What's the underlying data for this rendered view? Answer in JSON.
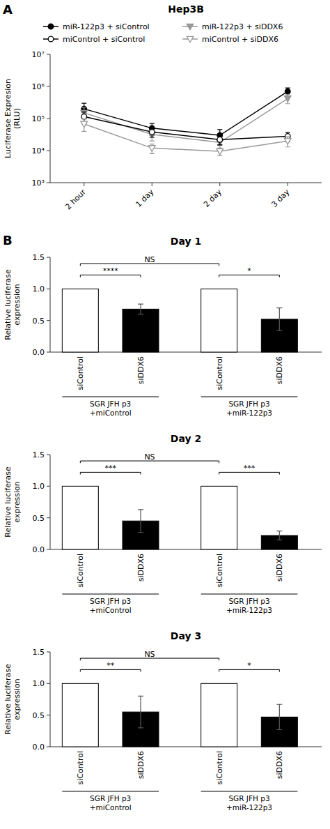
{
  "chart_data": [
    {
      "type": "line",
      "panel_label": "A",
      "title": "Hep3B",
      "y_label": "Luciferase Expresion\n(RLU)",
      "categories": [
        "2 hour",
        "1 day",
        "2 day",
        "3 day"
      ],
      "log": "y",
      "ylim": [
        1000,
        10000000
      ],
      "yticks": [
        {
          "value": 1000,
          "label": "10³"
        },
        {
          "value": 10000,
          "label": "10⁴"
        },
        {
          "value": 100000,
          "label": "10⁵"
        },
        {
          "value": 1000000,
          "label": "10⁶"
        },
        {
          "value": 10000000,
          "label": "10⁷"
        }
      ],
      "grid": false,
      "legend": "top",
      "series": [
        {
          "name": "miR-122p3 + siControl",
          "color": "black",
          "marker": "circle",
          "line_style": "solid",
          "values": [
            200000,
            50000,
            30000,
            700000
          ],
          "errors": [
            100000,
            20000,
            15000,
            200000
          ]
        },
        {
          "name": "miR-122p3 + siDDX6",
          "color": "#999999",
          "marker": "triangle-down",
          "line_style": "solid",
          "values": [
            150000,
            32000,
            18000,
            420000
          ],
          "errors": [
            70000,
            12000,
            8000,
            130000
          ]
        },
        {
          "name": "miControl + siControl",
          "color": "black",
          "marker": "circle-open",
          "line_style": "solid",
          "values": [
            115000,
            38000,
            22000,
            28000
          ],
          "errors": [
            45000,
            12000,
            7000,
            9000
          ]
        },
        {
          "name": "miControl + siDDX6",
          "color": "#999999",
          "marker": "triangle-down-open",
          "line_style": "solid",
          "values": [
            68000,
            12000,
            9500,
            20000
          ],
          "errors": [
            28000,
            4000,
            2500,
            7000
          ]
        }
      ]
    },
    {
      "type": "bar",
      "panel_label": "B",
      "title": "Day 1",
      "y_label": "Relative luciferase\nexpression",
      "categories": [
        "siControl",
        "siDDX6",
        "siControl",
        "siDDX6"
      ],
      "values": [
        1.0,
        0.68,
        1.0,
        0.52
      ],
      "errors": [
        0.0,
        0.08,
        0.0,
        0.18
      ],
      "colors": [
        "white",
        "black",
        "white",
        "black"
      ],
      "ylim": [
        0,
        1.5
      ],
      "yticks": [
        {
          "value": 0,
          "label": "0.0"
        },
        0.5,
        {
          "value": 1,
          "label": "1.0"
        },
        1.5
      ],
      "grid": false,
      "groups": [
        "SGR JFH p3\n+miControl",
        "SGR JFH p3\n+miR-122p3"
      ],
      "annotations": [
        {
          "x1": 0,
          "x2": 1,
          "y": 1.22,
          "text": "****"
        },
        {
          "x1": 2,
          "x2": 3,
          "y": 1.22,
          "text": "*"
        },
        {
          "x1": 0,
          "x2": 2,
          "y": 1.4,
          "text": "NS"
        }
      ]
    },
    {
      "type": "bar",
      "title": "Day 2",
      "y_label": "Relative luciferase\nexpression",
      "categories": [
        "siControl",
        "siDDX6",
        "siControl",
        "siDDX6"
      ],
      "values": [
        1.0,
        0.45,
        1.0,
        0.22
      ],
      "errors": [
        0.0,
        0.18,
        0.0,
        0.07
      ],
      "colors": [
        "white",
        "black",
        "white",
        "black"
      ],
      "ylim": [
        0,
        1.5
      ],
      "yticks": [
        {
          "value": 0,
          "label": "0.0"
        },
        0.5,
        {
          "value": 1,
          "label": "1.0"
        },
        1.5
      ],
      "grid": false,
      "groups": [
        "SGR JFH p3\n+miControl",
        "SGR JFH p3\n+miR-122p3"
      ],
      "annotations": [
        {
          "x1": 0,
          "x2": 1,
          "y": 1.22,
          "text": "***"
        },
        {
          "x1": 2,
          "x2": 3,
          "y": 1.22,
          "text": "***"
        },
        {
          "x1": 0,
          "x2": 2,
          "y": 1.4,
          "text": "NS"
        }
      ]
    },
    {
      "type": "bar",
      "title": "Day 3",
      "y_label": "Relative luciferase\nexpression",
      "categories": [
        "siControl",
        "siDDX6",
        "siControl",
        "siDDX6"
      ],
      "values": [
        1.0,
        0.55,
        1.0,
        0.47
      ],
      "errors": [
        0.0,
        0.25,
        0.0,
        0.2
      ],
      "colors": [
        "white",
        "black",
        "white",
        "black"
      ],
      "ylim": [
        0,
        1.5
      ],
      "yticks": [
        {
          "value": 0,
          "label": "0.0"
        },
        0.5,
        {
          "value": 1,
          "label": "1.0"
        },
        1.5
      ],
      "grid": false,
      "groups": [
        "SGR JFH p3\n+miControl",
        "SGR JFH p3\n+miR-122p3"
      ],
      "annotations": [
        {
          "x1": 0,
          "x2": 1,
          "y": 1.22,
          "text": "**"
        },
        {
          "x1": 2,
          "x2": 3,
          "y": 1.22,
          "text": "*"
        },
        {
          "x1": 0,
          "x2": 2,
          "y": 1.4,
          "text": "NS"
        }
      ]
    }
  ]
}
